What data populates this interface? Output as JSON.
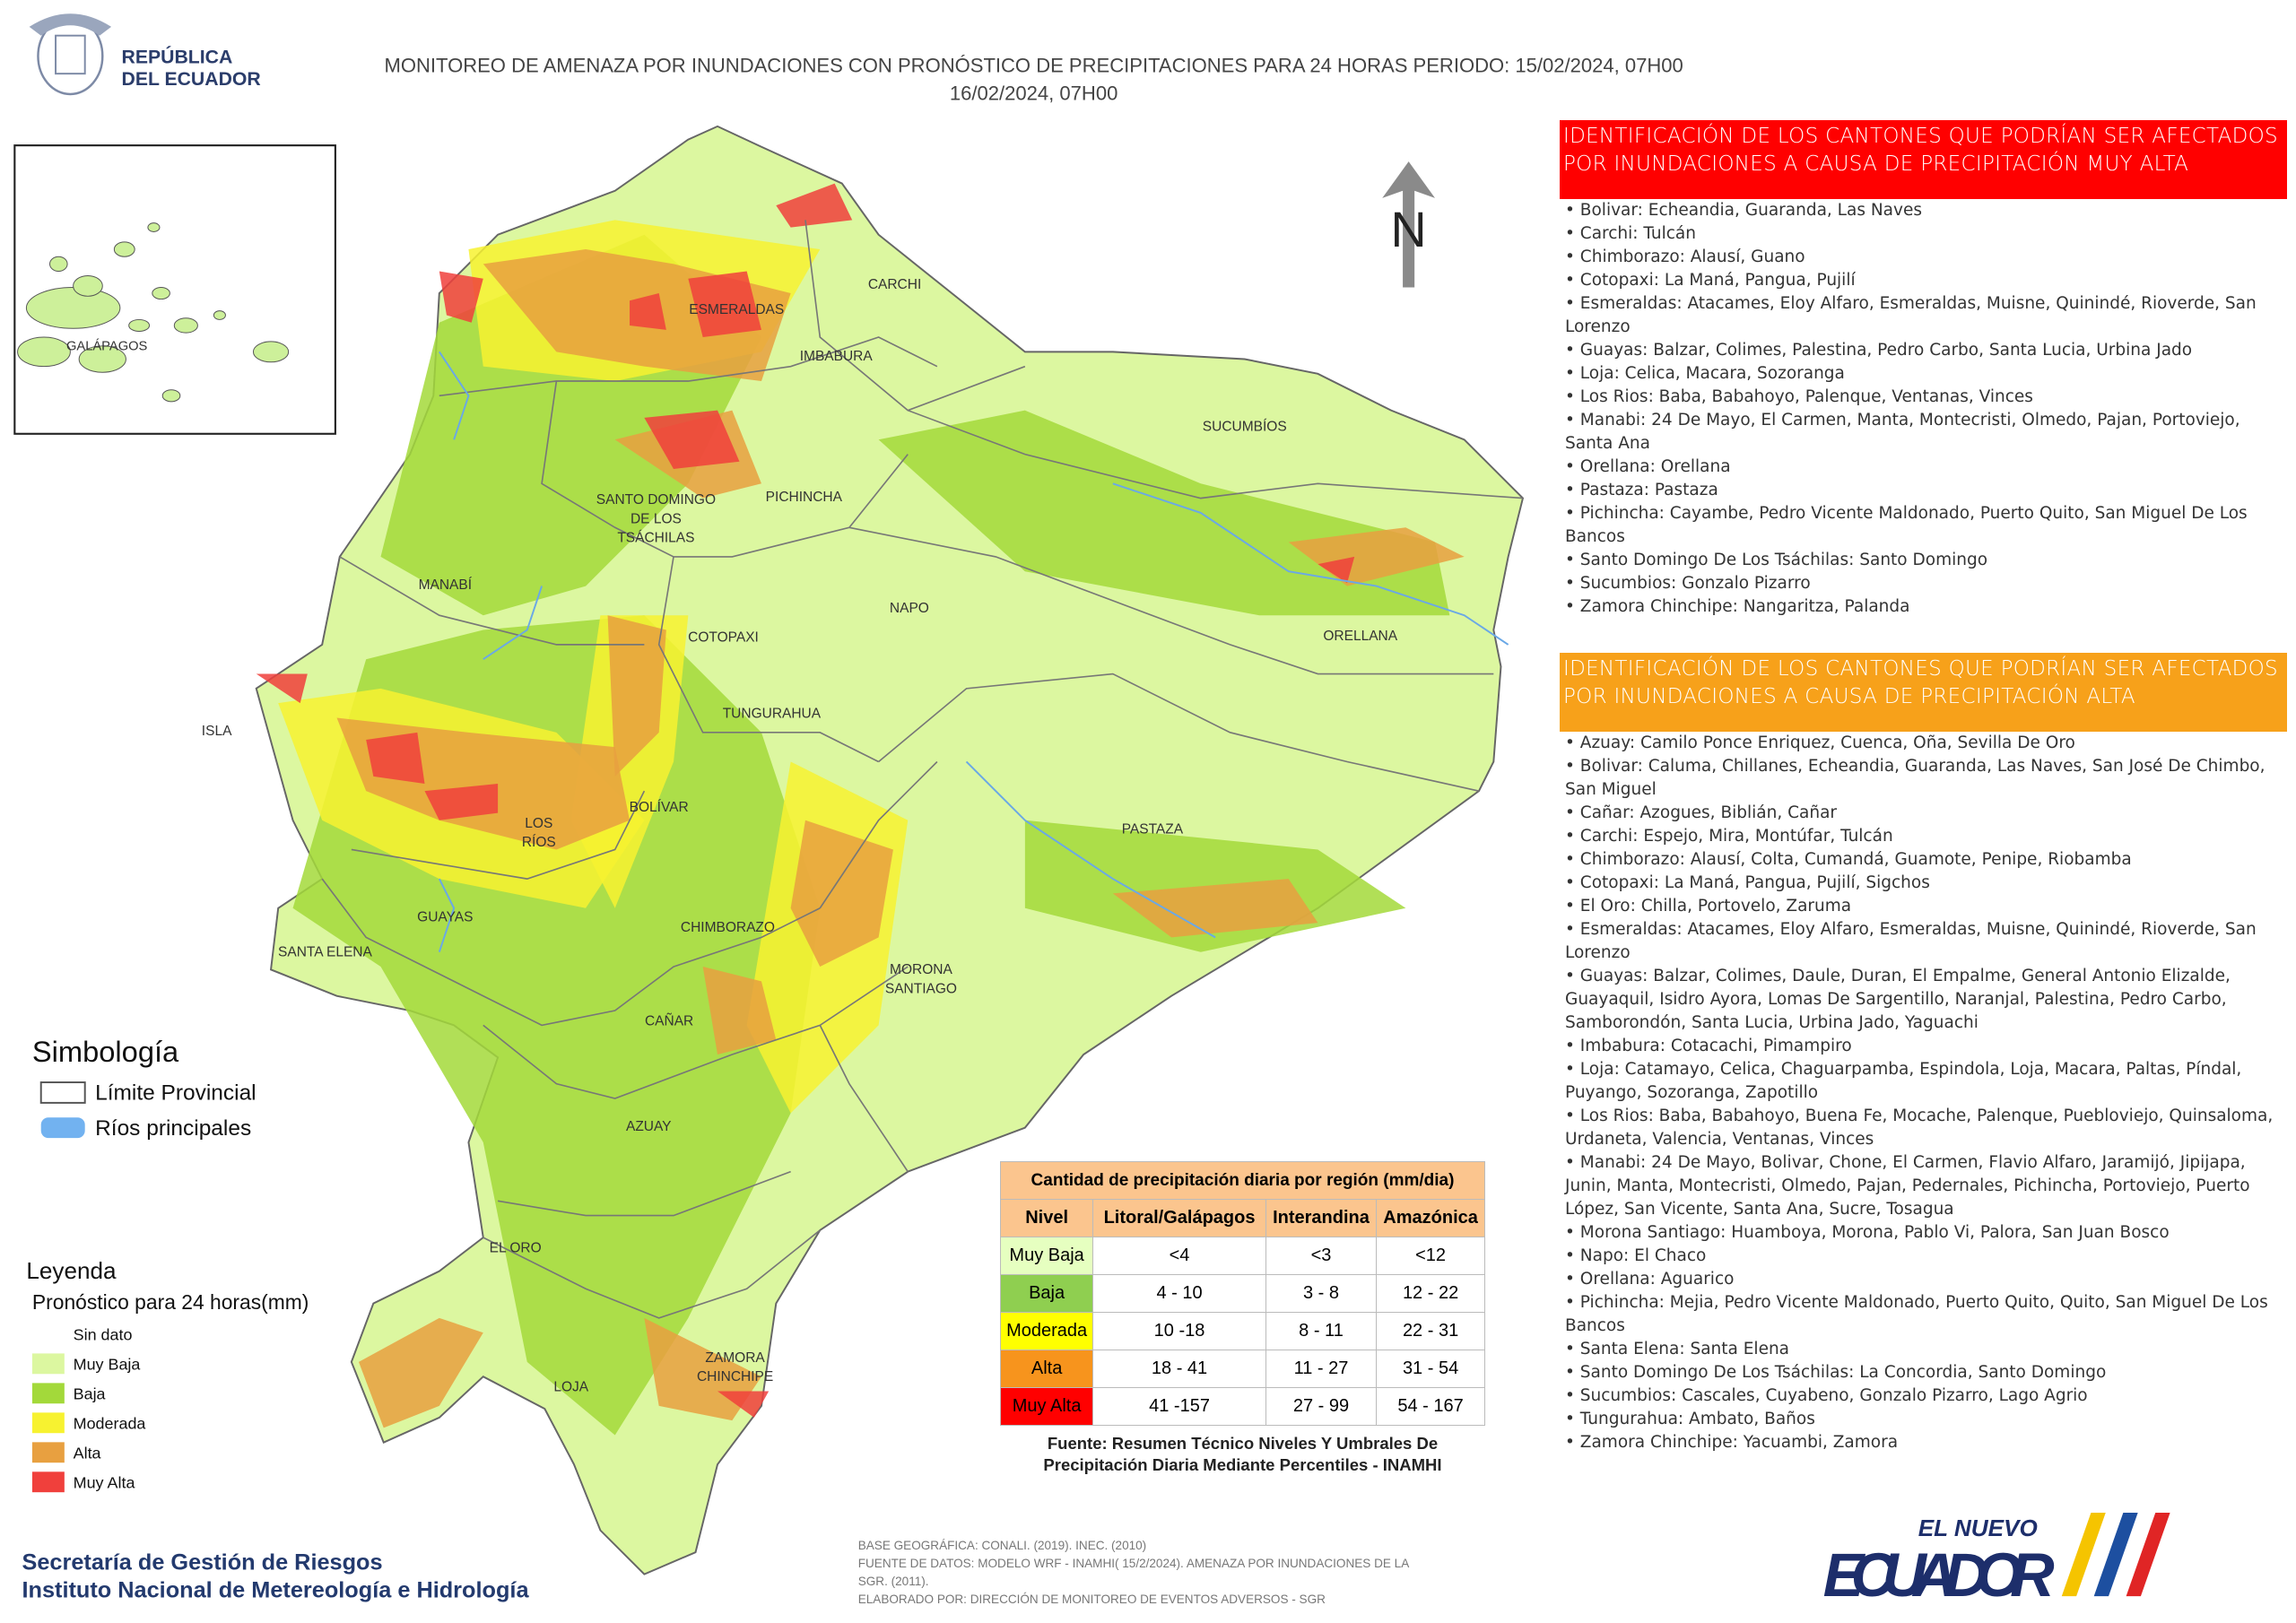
{
  "header": {
    "country": [
      "REPÚBLICA",
      "DEL ECUADOR"
    ],
    "title": [
      "MONITOREO DE AMENAZA POR INUNDACIONES  CON PRONÓSTICO DE  PRECIPITACIONES PARA 24 HORAS  PERIODO: 15/02/2024, 07H00",
      "16/02/2024, 07H00"
    ]
  },
  "inset": {
    "label": "GALÁPAGOS"
  },
  "north": "N",
  "provinces": [
    {
      "lines": [
        "ESMERALDAS"
      ]
    },
    {
      "lines": [
        "CARCHI"
      ]
    },
    {
      "lines": [
        "IMBABURA"
      ]
    },
    {
      "lines": [
        "SUCUMBÍOS"
      ]
    },
    {
      "lines": [
        "PICHINCHA"
      ]
    },
    {
      "lines": [
        "SANTO DOMINGO",
        "DE LOS",
        "TSÁCHILAS"
      ]
    },
    {
      "lines": [
        "MANABÍ"
      ]
    },
    {
      "lines": [
        "NAPO"
      ]
    },
    {
      "lines": [
        "ORELLANA"
      ]
    },
    {
      "lines": [
        "COTOPAXI"
      ]
    },
    {
      "lines": [
        "TUNGURAHUA"
      ]
    },
    {
      "lines": [
        "ISLA"
      ]
    },
    {
      "lines": [
        "BOLÍVAR"
      ]
    },
    {
      "lines": [
        "LOS",
        "RÍOS"
      ]
    },
    {
      "lines": [
        "PASTAZA"
      ]
    },
    {
      "lines": [
        "GUAYAS"
      ]
    },
    {
      "lines": [
        "CHIMBORAZO"
      ]
    },
    {
      "lines": [
        "SANTA ELENA"
      ]
    },
    {
      "lines": [
        "MORONA",
        "SANTIAGO"
      ]
    },
    {
      "lines": [
        "CAÑAR"
      ]
    },
    {
      "lines": [
        "AZUAY"
      ]
    },
    {
      "lines": [
        "EL ORO"
      ]
    },
    {
      "lines": [
        "ZAMORA",
        "CHINCHIPE"
      ]
    },
    {
      "lines": [
        "LOJA"
      ]
    }
  ],
  "symbology": {
    "title": "Simbología",
    "items": [
      "Límite Provincial",
      "Ríos principales"
    ]
  },
  "legend": {
    "title": "Leyenda",
    "subtitle": "Pronóstico para 24 horas(mm)",
    "items": [
      {
        "label": "Sin dato",
        "color": "#ffffff"
      },
      {
        "label": "Muy Baja",
        "color": "#dcf7a0"
      },
      {
        "label": "Baja",
        "color": "#a3d93a"
      },
      {
        "label": "Moderada",
        "color": "#f7f230"
      },
      {
        "label": "Alta",
        "color": "#e8a040"
      },
      {
        "label": "Muy Alta",
        "color": "#f0403c"
      }
    ]
  },
  "table": {
    "title": "Cantidad de precipitación diaria por región (mm/dia)",
    "header": [
      "Nivel",
      "Litoral/Galápagos",
      "Interandina",
      "Amazónica"
    ],
    "rows": [
      {
        "level": "Muy Baja",
        "color": "#e6ffc0",
        "values": [
          "<4",
          "<3",
          "<12"
        ]
      },
      {
        "level": "Baja",
        "color": "#8fcf50",
        "values": [
          "4 - 10",
          "3 - 8",
          "12 - 22"
        ]
      },
      {
        "level": "Moderada",
        "color": "#ffff00",
        "values": [
          "10 -18",
          "8 - 11",
          "22 - 31"
        ]
      },
      {
        "level": "Alta",
        "color": "#f7941d",
        "values": [
          "18 - 41",
          "11 - 27",
          "31 - 54"
        ]
      },
      {
        "level": "Muy Alta",
        "color": "#ff0000",
        "values": [
          "41 -157",
          "27 - 99",
          "54 - 167"
        ]
      }
    ],
    "source": [
      "Fuente: Resumen Técnico Niveles Y Umbrales De",
      "Precipitación Diaria Mediante Percentiles - INAMHI"
    ]
  },
  "very_high": {
    "title": "IDENTIFICACIÓN DE LOS CANTONES QUE PODRÍAN SER AFECTADOS POR INUNDACIONES  A CAUSA DE PRECIPITACIÓN MUY ALTA",
    "items": [
      "Bolivar: Echeandia, Guaranda, Las Naves",
      "Carchi: Tulcán",
      "Chimborazo: Alausí, Guano",
      "Cotopaxi: La Maná, Pangua, Pujilí",
      "Esmeraldas: Atacames, Eloy Alfaro, Esmeraldas, Muisne, Quinindé, Rioverde, San Lorenzo",
      "Guayas: Balzar, Colimes, Palestina, Pedro Carbo, Santa Lucia, Urbina Jado",
      "Loja: Celica, Macara, Sozoranga",
      "Los Rios: Baba, Babahoyo, Palenque, Ventanas, Vinces",
      "Manabi: 24 De Mayo, El Carmen, Manta, Montecristi, Olmedo, Pajan, Portoviejo, Santa Ana",
      "Orellana: Orellana",
      "Pastaza: Pastaza",
      "Pichincha: Cayambe, Pedro Vicente Maldonado, Puerto Quito, San Miguel De Los Bancos",
      "Santo Domingo De Los Tsáchilas: Santo Domingo",
      "Sucumbios: Gonzalo Pizarro",
      "Zamora Chinchipe: Nangaritza, Palanda"
    ]
  },
  "high": {
    "title": "IDENTIFICACIÓN DE LOS CANTONES QUE  PODRÍAN SER AFECTADOS POR INUNDACIONES  A CAUSA DE PRECIPITACIÓN  ALTA",
    "items": [
      "Azuay: Camilo Ponce Enriquez, Cuenca, Oña, Sevilla De Oro",
      "Bolivar: Caluma, Chillanes, Echeandia, Guaranda, Las Naves, San José De Chimbo, San Miguel",
      "Cañar: Azogues, Biblián, Cañar",
      "Carchi: Espejo, Mira, Montúfar, Tulcán",
      "Chimborazo: Alausí, Colta, Cumandá, Guamote, Penipe, Riobamba",
      "Cotopaxi: La Maná, Pangua, Pujilí, Sigchos",
      "El Oro: Chilla, Portovelo, Zaruma",
      "Esmeraldas: Atacames, Eloy Alfaro, Esmeraldas, Muisne, Quinindé, Rioverde, San Lorenzo",
      "Guayas: Balzar, Colimes, Daule, Duran, El Empalme, General Antonio Elizalde, Guayaquil, Isidro Ayora, Lomas De Sargentillo, Naranjal, Palestina, Pedro Carbo, Samborondón, Santa Lucia, Urbina Jado, Yaguachi",
      "Imbabura: Cotacachi, Pimampiro",
      "Loja: Catamayo, Celica, Chaguarpamba, Espindola, Loja, Macara, Paltas, Píndal, Puyango, Sozoranga, Zapotillo",
      "Los Rios: Baba, Babahoyo, Buena Fe, Mocache, Palenque, Puebloviejo, Quinsaloma, Urdaneta, Valencia, Ventanas, Vinces",
      "Manabi: 24 De Mayo, Bolivar, Chone, El Carmen, Flavio Alfaro, Jaramijó, Jipijapa, Junin, Manta, Montecristi, Olmedo, Pajan, Pedernales, Pichincha, Portoviejo, Puerto López, San Vicente, Santa Ana, Sucre, Tosagua",
      "Morona Santiago: Huamboya, Morona, Pablo Vi, Palora, San Juan Bosco",
      "Napo: El Chaco",
      "Orellana: Aguarico",
      "Pichincha: Mejia, Pedro Vicente Maldonado, Puerto Quito, Quito, San Miguel De Los Bancos",
      "Santa Elena: Santa Elena",
      "Santo Domingo De Los Tsáchilas: La Concordia, Santo Domingo",
      "Sucumbios: Cascales, Cuyabeno, Gonzalo Pizarro, Lago Agrio",
      "Tungurahua: Ambato, Baños",
      "Zamora Chinchipe: Yacuambi, Zamora"
    ]
  },
  "footer": {
    "org": [
      "Secretaría de Gestión de Riesgos",
      "Instituto Nacional de Metereología e Hidrología"
    ],
    "notes": [
      "BASE GEOGRÁFICA: CONALI. (2019). INEC. (2010)",
      "FUENTE DE DATOS: MODELO WRF - INAMHI( 15/2/2024).  AMENAZA POR INUNDACIONES DE LA",
      "SGR. (2011).",
      "ELABORADO POR: DIRECCIÓN DE MONITOREO DE EVENTOS ADVERSOS - SGR"
    ],
    "logo": [
      "EL NUEVO",
      "ECUADOR"
    ]
  }
}
